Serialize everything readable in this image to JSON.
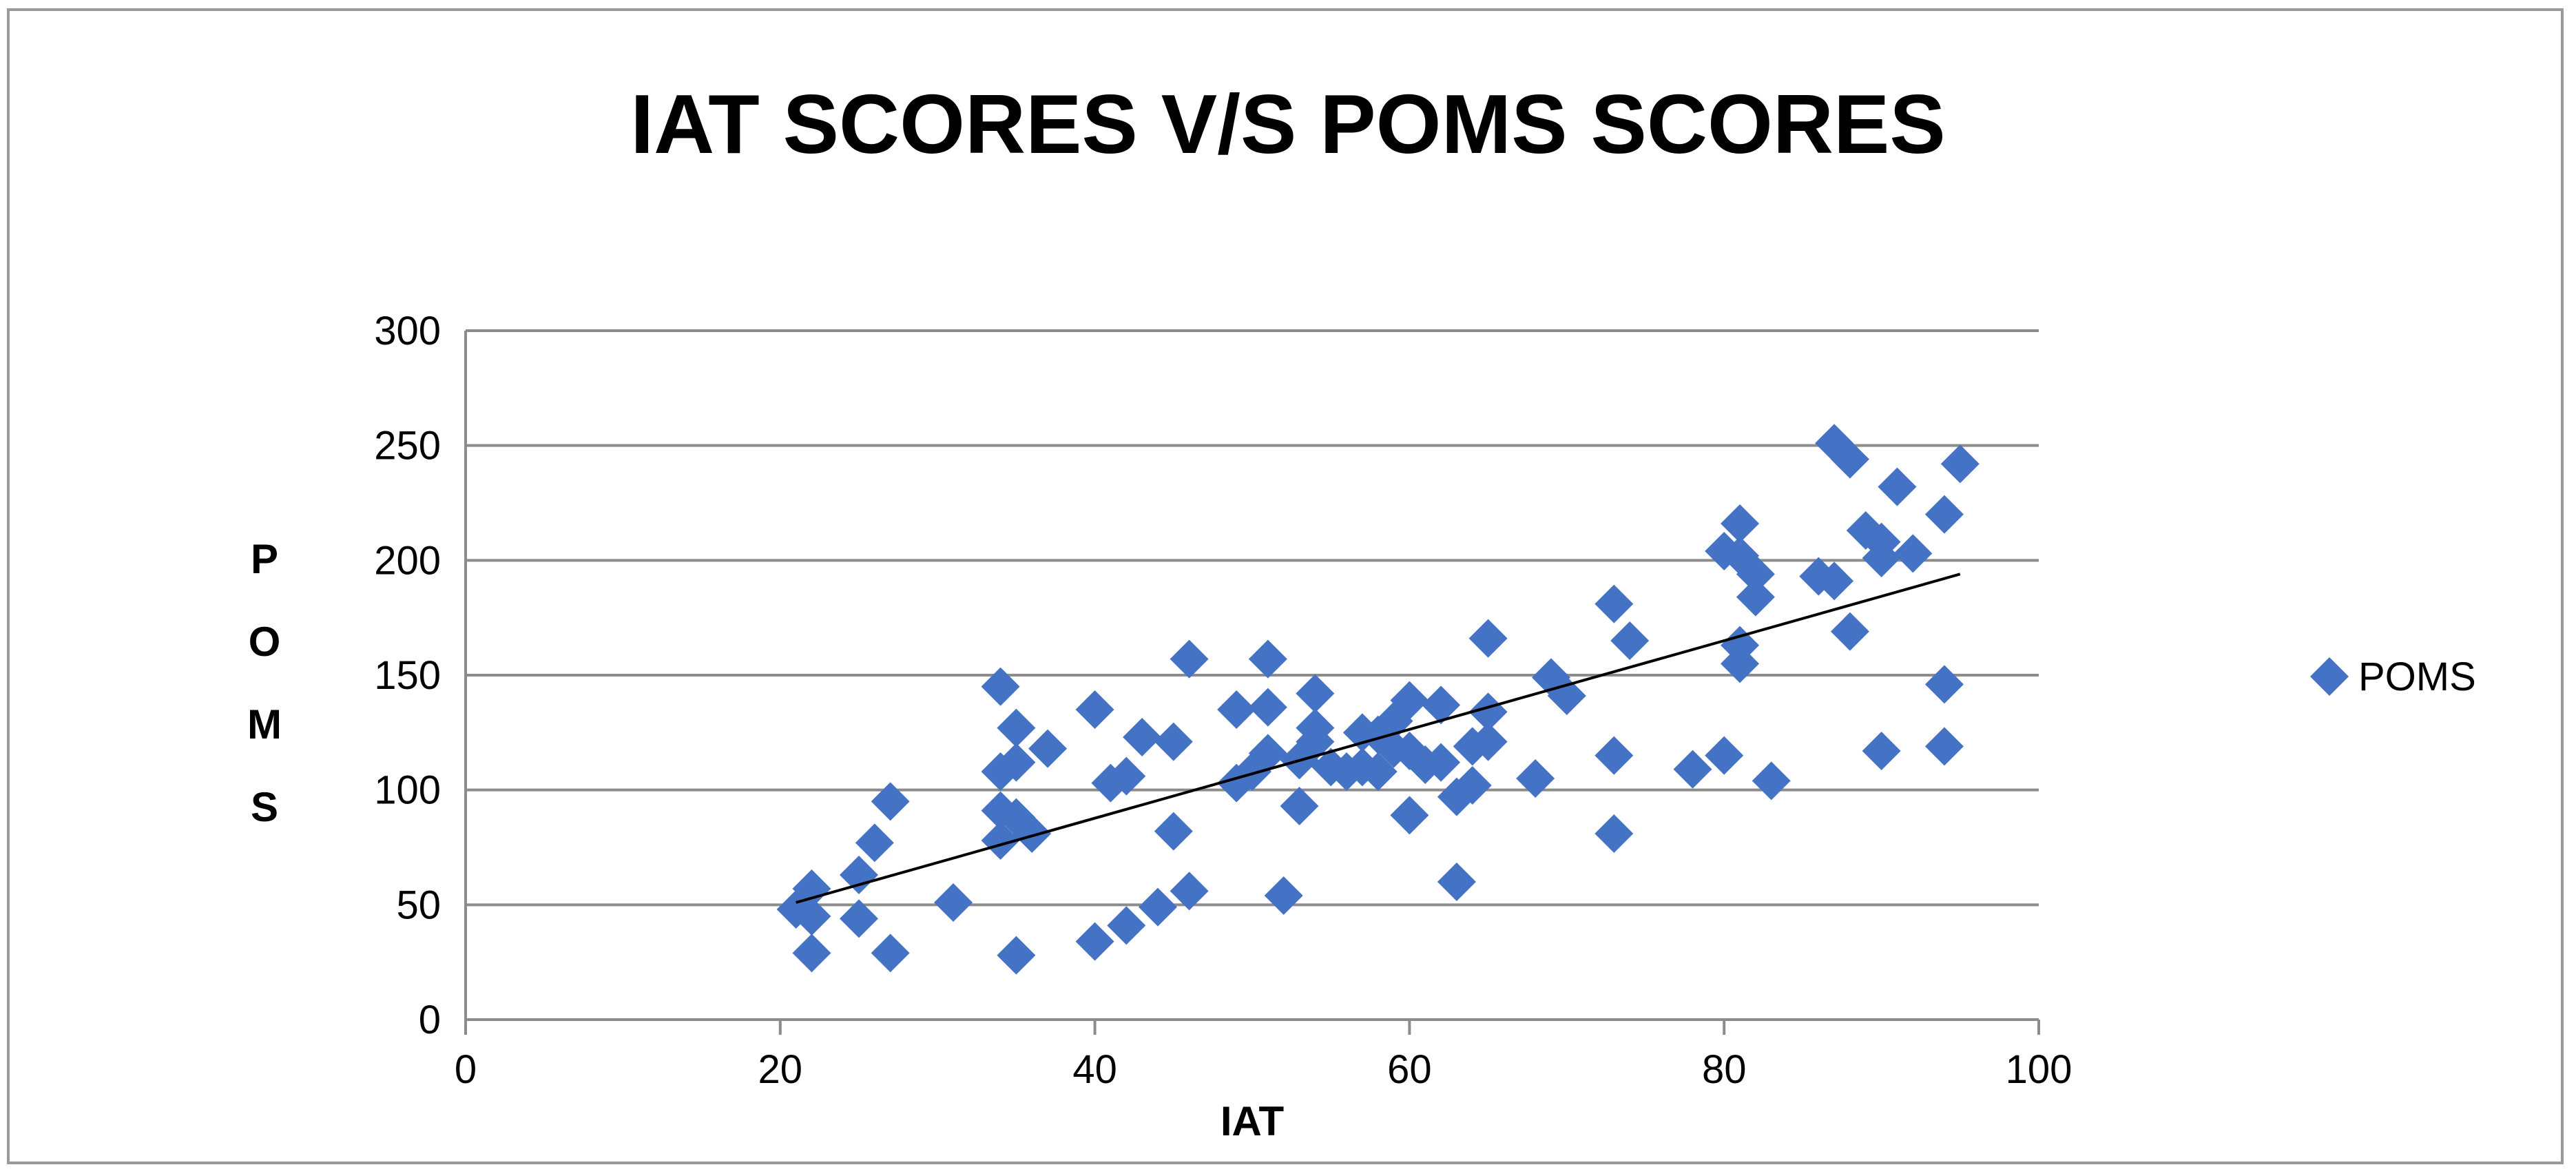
{
  "chart_data": {
    "type": "scatter",
    "title": "IAT SCORES V/S POMS SCORES",
    "xlabel": "IAT",
    "ylabel": "POMS",
    "xlim": [
      0,
      100
    ],
    "ylim": [
      0,
      300
    ],
    "x_ticks": [
      "0",
      "20",
      "40",
      "60",
      "80",
      "100"
    ],
    "y_ticks": [
      "0",
      "50",
      "100",
      "150",
      "200",
      "250",
      "300"
    ],
    "grid": "horizontal",
    "legend_position": "right",
    "marker_color": "#4472C4",
    "trendline_color": "#000000",
    "trendline": {
      "type": "linear",
      "x": [
        21,
        95
      ],
      "y": [
        51,
        194
      ]
    },
    "series": [
      {
        "name": "POMS",
        "marker": "diamond",
        "points": [
          [
            21,
            48
          ],
          [
            22,
            57
          ],
          [
            22,
            45
          ],
          [
            22,
            29
          ],
          [
            25,
            63
          ],
          [
            25,
            44
          ],
          [
            26,
            77
          ],
          [
            27,
            95
          ],
          [
            27,
            29
          ],
          [
            31,
            51
          ],
          [
            34,
            145
          ],
          [
            34,
            108
          ],
          [
            34,
            91
          ],
          [
            34,
            78
          ],
          [
            35,
            127
          ],
          [
            35,
            112
          ],
          [
            35,
            88
          ],
          [
            35,
            28
          ],
          [
            36,
            81
          ],
          [
            37,
            118
          ],
          [
            40,
            135
          ],
          [
            40,
            34
          ],
          [
            41,
            103
          ],
          [
            42,
            106
          ],
          [
            42,
            41
          ],
          [
            43,
            123
          ],
          [
            44,
            49
          ],
          [
            45,
            121
          ],
          [
            45,
            82
          ],
          [
            46,
            157
          ],
          [
            46,
            56
          ],
          [
            49,
            135
          ],
          [
            49,
            103
          ],
          [
            50,
            108
          ],
          [
            51,
            157
          ],
          [
            51,
            136
          ],
          [
            51,
            116
          ],
          [
            52,
            54
          ],
          [
            53,
            93
          ],
          [
            53,
            113
          ],
          [
            54,
            142
          ],
          [
            54,
            127
          ],
          [
            54,
            121
          ],
          [
            55,
            110
          ],
          [
            56,
            108
          ],
          [
            57,
            125
          ],
          [
            57,
            110
          ],
          [
            58,
            108
          ],
          [
            58,
            124
          ],
          [
            59,
            118
          ],
          [
            59,
            130
          ],
          [
            60,
            139
          ],
          [
            60,
            117
          ],
          [
            60,
            89
          ],
          [
            61,
            111
          ],
          [
            62,
            137
          ],
          [
            62,
            112
          ],
          [
            63,
            97
          ],
          [
            63,
            60
          ],
          [
            64,
            102
          ],
          [
            64,
            119
          ],
          [
            65,
            166
          ],
          [
            65,
            134
          ],
          [
            65,
            121
          ],
          [
            68,
            105
          ],
          [
            69,
            149
          ],
          [
            70,
            141
          ],
          [
            73,
            181
          ],
          [
            73,
            115
          ],
          [
            73,
            81
          ],
          [
            74,
            165
          ],
          [
            78,
            109
          ],
          [
            80,
            204
          ],
          [
            80,
            115
          ],
          [
            81,
            216
          ],
          [
            81,
            202
          ],
          [
            81,
            163
          ],
          [
            81,
            155
          ],
          [
            82,
            194
          ],
          [
            82,
            184
          ],
          [
            83,
            104
          ],
          [
            86,
            193
          ],
          [
            87,
            251
          ],
          [
            87,
            191
          ],
          [
            88,
            244
          ],
          [
            88,
            169
          ],
          [
            89,
            213
          ],
          [
            90,
            208
          ],
          [
            90,
            201
          ],
          [
            90,
            117
          ],
          [
            91,
            232
          ],
          [
            92,
            203
          ],
          [
            94,
            220
          ],
          [
            94,
            146
          ],
          [
            94,
            119
          ],
          [
            95,
            242
          ]
        ]
      }
    ]
  }
}
